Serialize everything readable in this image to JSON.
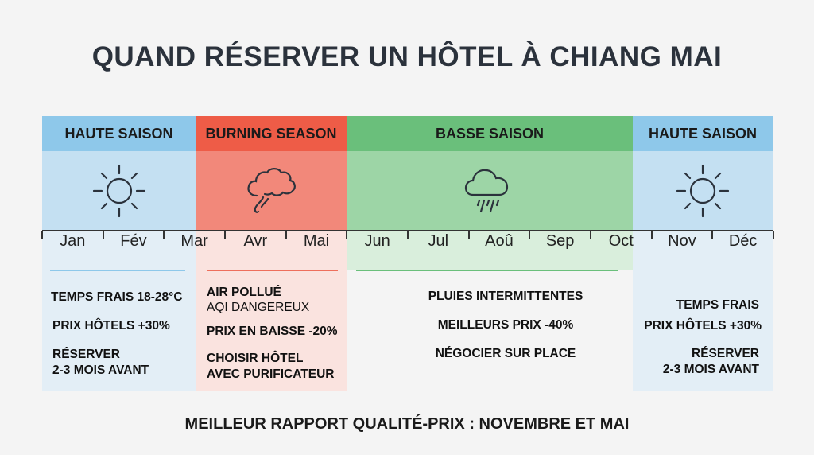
{
  "title": "QUAND RÉSERVER UN HÔTEL À CHIANG MAI",
  "colors": {
    "blue_header": "#8ec8ea",
    "blue_body": "#c4e0f2",
    "blue_light": "#e3eef6",
    "red_header": "#ee5c47",
    "red_body": "#f2887a",
    "red_light": "#fae3df",
    "green_header": "#6abf7b",
    "green_body": "#9dd5a6",
    "green_light": "#d9eedc"
  },
  "seasons": [
    {
      "label": "HAUTE SAISON",
      "icon": "sun-icon"
    },
    {
      "label": "BURNING SEASON",
      "icon": "smoke-cloud-icon"
    },
    {
      "label": "BASSE SAISON",
      "icon": "rain-cloud-icon"
    },
    {
      "label": "HAUTE SAISON",
      "icon": "sun-icon"
    }
  ],
  "months": [
    "Jan",
    "Fév",
    "Mar",
    "Avr",
    "Mai",
    "Jun",
    "Jul",
    "Aoû",
    "Sep",
    "Oct",
    "Nov",
    "Déc"
  ],
  "notes": {
    "high1": [
      "TEMPS FRAIS 18-28°C",
      "PRIX HÔTELS +30%",
      "RÉSERVER",
      "2-3 MOIS AVANT"
    ],
    "burning": [
      "AIR POLLUÉ",
      "AQI DANGEREUX",
      "PRIX EN BAISSE -20%",
      "CHOISIR HÔTEL",
      "AVEC PURIFICATEUR"
    ],
    "low": [
      "PLUIES INTERMITTENTES",
      "MEILLEURS PRIX -40%",
      "NÉGOCIER SUR PLACE"
    ],
    "high2": [
      "TEMPS FRAIS",
      "PRIX HÔTELS +30%",
      "RÉSERVER",
      "2-3 MOIS AVANT"
    ]
  },
  "footer": "MEILLEUR RAPPORT QUALITÉ-PRIX : NOVEMBRE ET MAI"
}
